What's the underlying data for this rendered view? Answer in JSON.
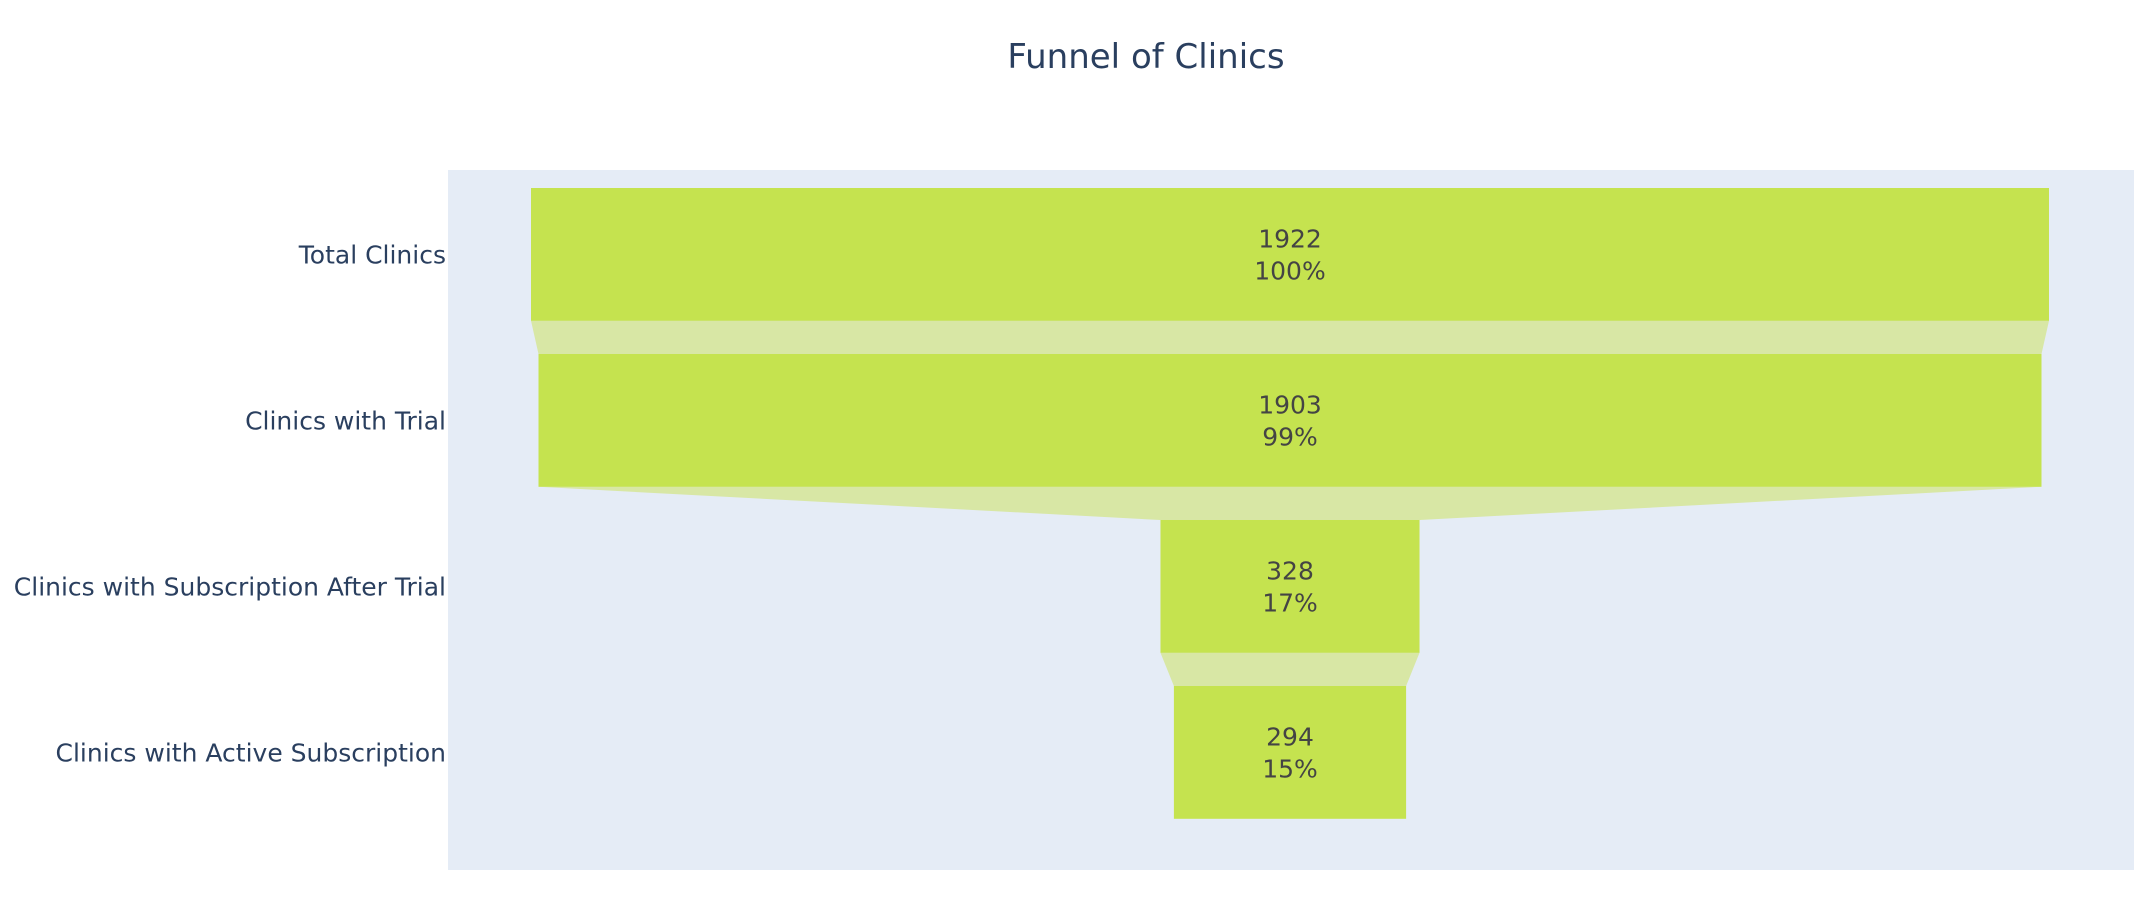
{
  "chart_data": {
    "type": "funnel",
    "title": "Funnel of Clinics",
    "categories": [
      "Total Clinics",
      "Clinics with Trial",
      "Clinics with Subscription After Trial",
      "Clinics with Active Subscription"
    ],
    "values": [
      1922,
      1903,
      328,
      294
    ],
    "percent_labels": [
      "100%",
      "99%",
      "17%",
      "15%"
    ],
    "colors": {
      "bar": "#c5e34f",
      "connector": "#d8e7a5",
      "plot_background": "#e5ecf6",
      "title_text": "#2a3f5f",
      "data_text": "#444444"
    }
  }
}
